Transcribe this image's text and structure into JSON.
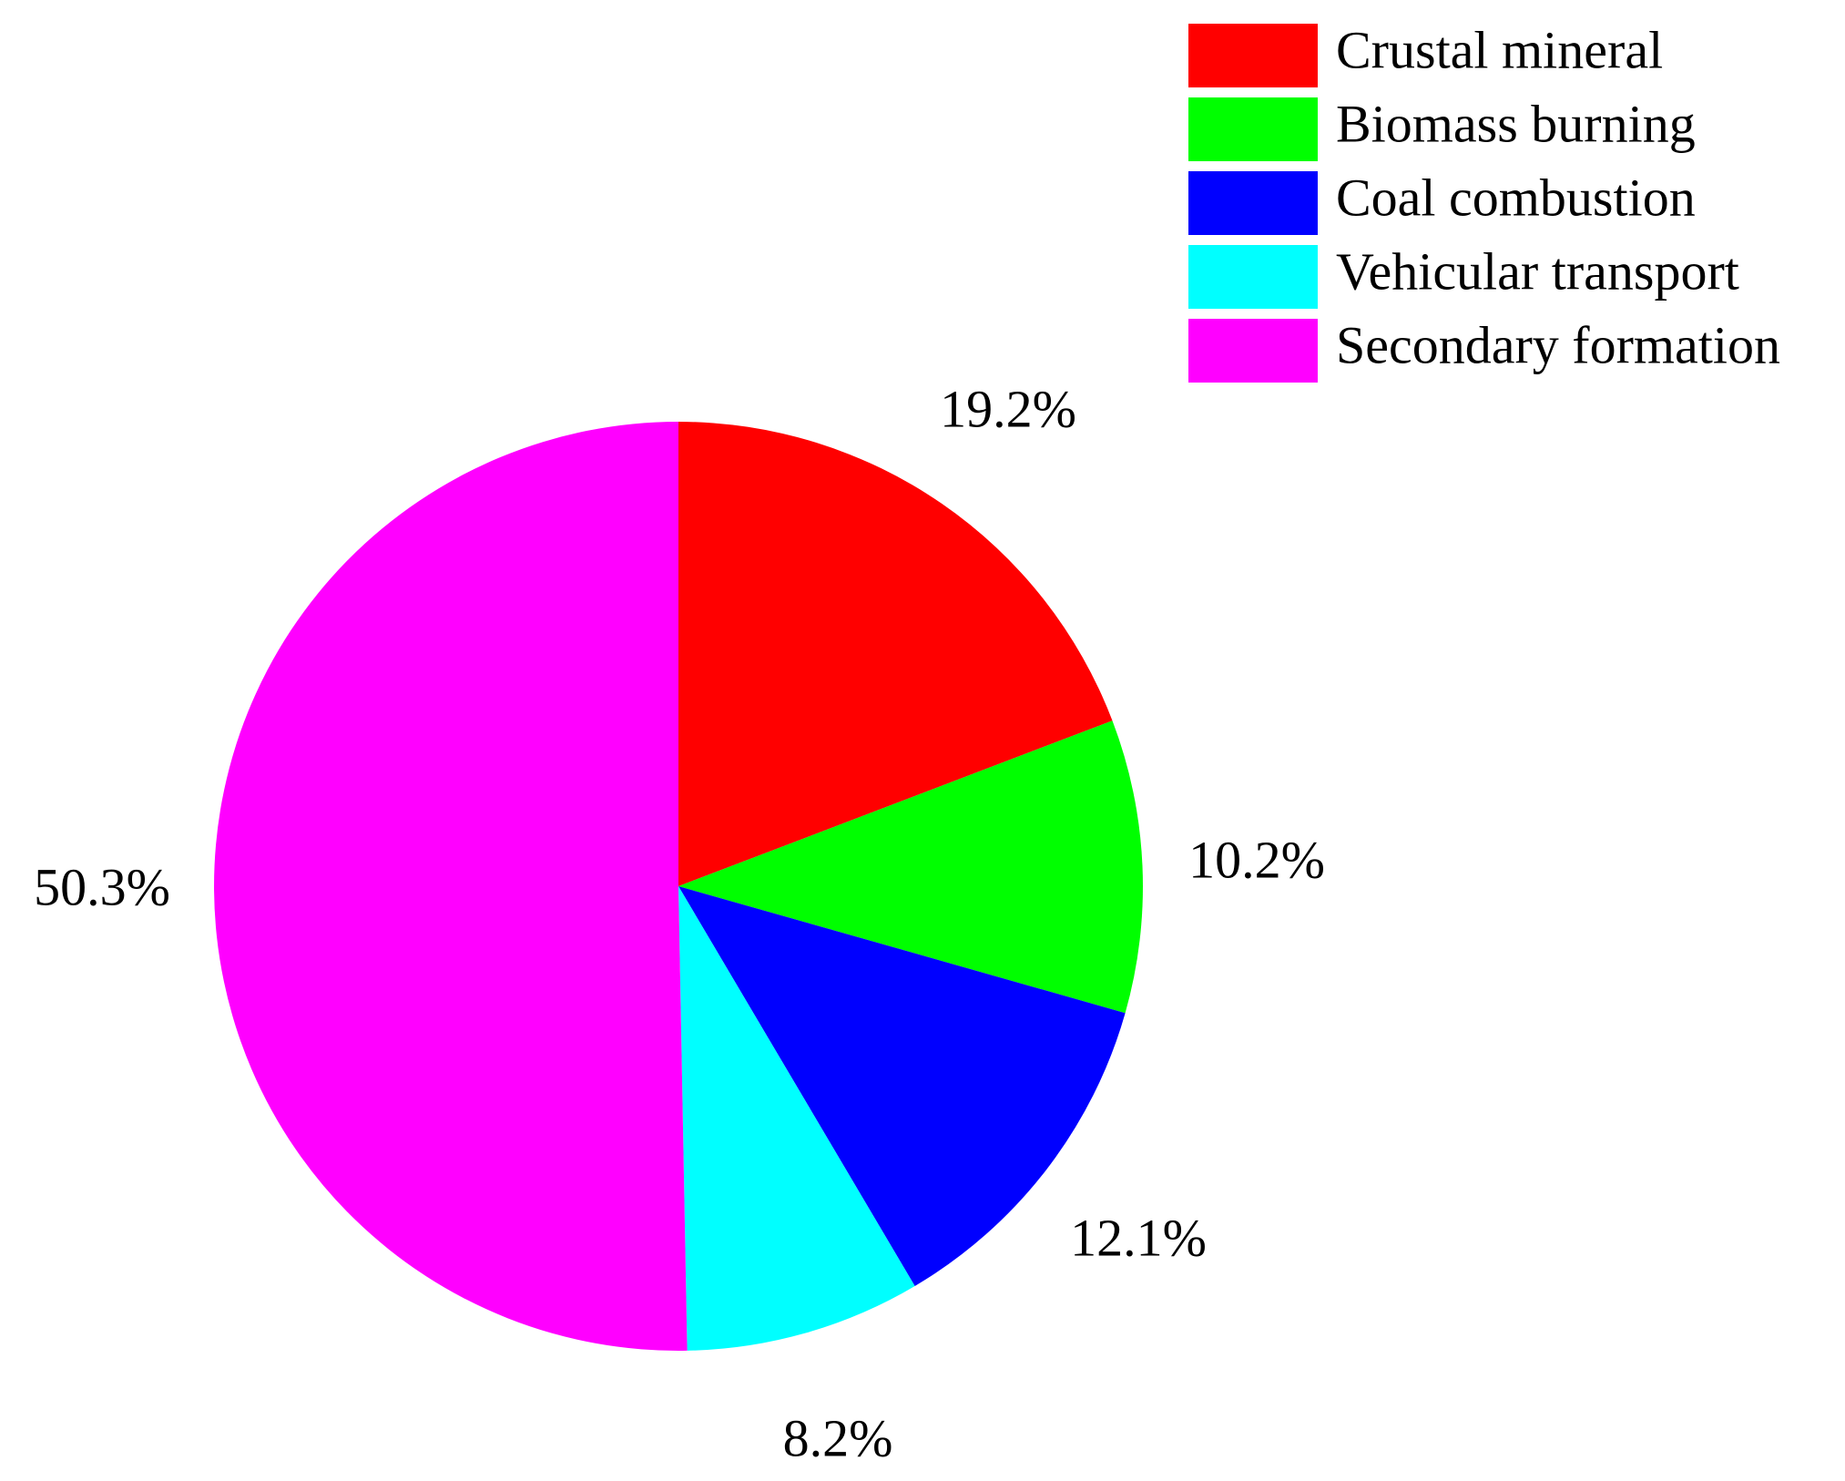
{
  "chart_data": {
    "type": "pie",
    "start_angle_deg": 0,
    "direction": "clockwise",
    "legend_position": "top-right",
    "slices": [
      {
        "name": "Crustal mineral",
        "value": 19.2,
        "label": "19.2%",
        "color": "#ff0000"
      },
      {
        "name": "Biomass burning",
        "value": 10.2,
        "label": "10.2%",
        "color": "#00ff00"
      },
      {
        "name": "Coal combustion",
        "value": 12.1,
        "label": "12.1%",
        "color": "#0000ff"
      },
      {
        "name": "Vehicular transport",
        "value": 8.2,
        "label": "8.2%",
        "color": "#00ffff"
      },
      {
        "name": "Secondary formation",
        "value": 50.3,
        "label": "50.3%",
        "color": "#ff00ff"
      }
    ]
  }
}
